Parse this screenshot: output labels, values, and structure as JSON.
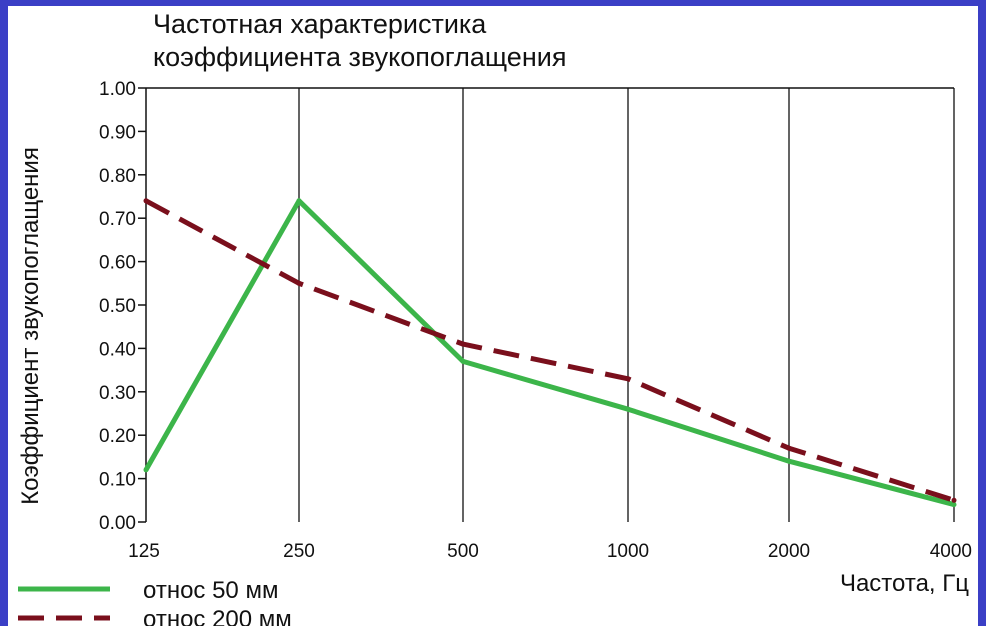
{
  "chart_data": {
    "type": "line",
    "title_lines": [
      "Частотная характеристика",
      "коэффициента звукопоглащения"
    ],
    "xlabel": "Частота, Гц",
    "ylabel": "Коэффициент звукопоглащения",
    "categories": [
      "125",
      "250",
      "500",
      "1000",
      "2000",
      "4000"
    ],
    "yticks": [
      "0.00",
      "0.10",
      "0.20",
      "0.30",
      "0.40",
      "0.50",
      "0.60",
      "0.70",
      "0.80",
      "0.90",
      "1.00"
    ],
    "ylim": [
      0,
      1
    ],
    "grid": "vertical",
    "legend_position": "bottom-left",
    "series": [
      {
        "name": "относ 50 мм",
        "values": [
          0.12,
          0.74,
          0.37,
          0.26,
          0.14,
          0.04
        ],
        "color": "#3cb54a",
        "style": "solid"
      },
      {
        "name": "относ 200 мм",
        "values": [
          0.74,
          0.55,
          0.41,
          0.33,
          0.17,
          0.05
        ],
        "color": "#7a0f1c",
        "style": "dashed"
      }
    ]
  }
}
